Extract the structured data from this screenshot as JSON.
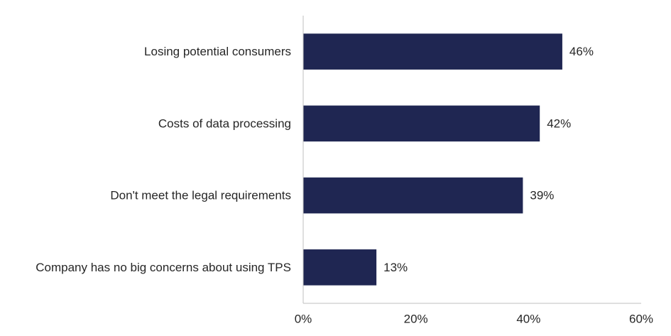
{
  "chart_data": {
    "type": "bar",
    "orientation": "horizontal",
    "categories": [
      "Losing potential consumers",
      "Costs of data processing",
      "Don't meet the legal requirements",
      "Company has no big concerns about using TPS"
    ],
    "values": [
      46,
      42,
      39,
      13
    ],
    "value_labels": [
      "46%",
      "42%",
      "39%",
      "13%"
    ],
    "xlim": [
      0,
      60
    ],
    "xticks": [
      0,
      20,
      40,
      60
    ],
    "xtick_labels": [
      "0%",
      "20%",
      "40%",
      "60%"
    ],
    "bar_color": "#1f2652",
    "grid": false,
    "legend": "none",
    "title": "",
    "xlabel": "",
    "ylabel": ""
  }
}
